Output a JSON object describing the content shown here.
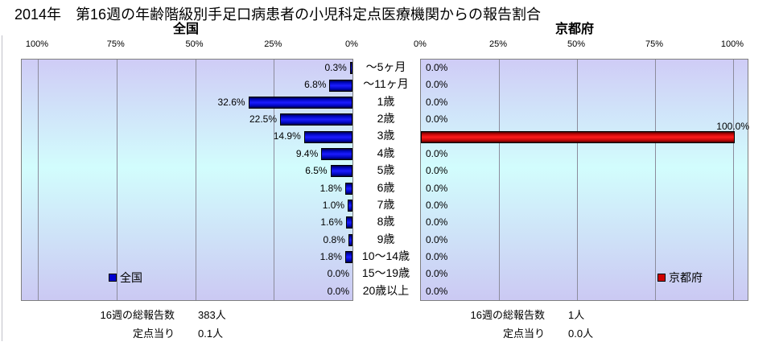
{
  "title": "2014年　第16週の年齢階級別手足口病患者の小児科定点医療機関からの報告割合",
  "chart_data": {
    "type": "bar",
    "orientation": "horizontal",
    "categories": [
      "～5ヶ月",
      "～11ヶ月",
      "1歳",
      "2歳",
      "3歳",
      "4歳",
      "5歳",
      "6歳",
      "7歳",
      "8歳",
      "9歳",
      "10～14歳",
      "15～19歳",
      "20歳以上"
    ],
    "series": [
      {
        "name": "全国",
        "values": [
          0.3,
          6.8,
          32.6,
          22.5,
          14.9,
          9.4,
          6.5,
          1.8,
          1.0,
          1.6,
          0.8,
          1.8,
          0.0,
          0.0
        ],
        "color": "#0000ee",
        "axis_ticks": [
          "100%",
          "75%",
          "50%",
          "25%",
          "0%"
        ],
        "axis_direction": "right-to-left"
      },
      {
        "name": "京都府",
        "values": [
          0.0,
          0.0,
          0.0,
          0.0,
          100.0,
          0.0,
          0.0,
          0.0,
          0.0,
          0.0,
          0.0,
          0.0,
          0.0,
          0.0
        ],
        "color": "#ee0000",
        "axis_ticks": [
          "0%",
          "25%",
          "50%",
          "75%",
          "100%"
        ],
        "axis_direction": "left-to-right"
      }
    ],
    "xlim": [
      0,
      105
    ],
    "value_label_format": "0.0%",
    "grid": true,
    "legend_position": "inside-lower-middle"
  },
  "stats": {
    "national": {
      "total_label": "16週の総報告数",
      "total_value": "383人",
      "per_sentinel_label": "定点当り",
      "per_sentinel_value": "0.1人"
    },
    "kyoto": {
      "total_label": "16週の総報告数",
      "total_value": "1人",
      "per_sentinel_label": "定点当り",
      "per_sentinel_value": "0.0人"
    }
  }
}
